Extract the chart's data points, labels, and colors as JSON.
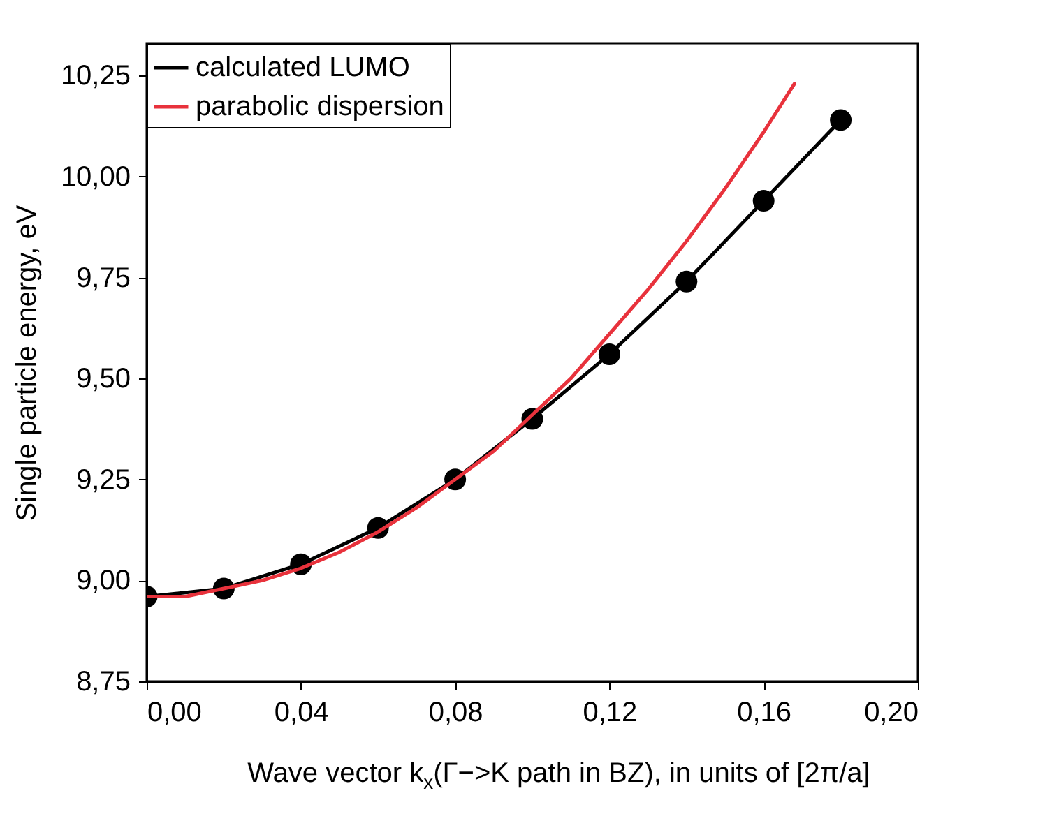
{
  "chart_data": {
    "type": "line",
    "xlabel": "Wave vector k$_{x}$(Γ−>K path in BZ), in units of [2π/a]",
    "ylabel": "Single particle energy, eV",
    "series": [
      {
        "name": "calculated LUMO",
        "color": "#000000",
        "marker": "circle",
        "x": [
          0,
          0.02,
          0.04,
          0.06,
          0.08,
          0.1,
          0.12,
          0.14,
          0.16,
          0.18
        ],
        "values": [
          8.96,
          8.98,
          9.04,
          9.13,
          9.25,
          9.4,
          9.56,
          9.74,
          9.94,
          10.14
        ]
      },
      {
        "name": "parabolic dispersion",
        "color": "#e8323c",
        "marker": "none",
        "x": [
          0,
          0.01,
          0.02,
          0.03,
          0.04,
          0.05,
          0.06,
          0.07,
          0.08,
          0.09,
          0.1,
          0.11,
          0.12,
          0.13,
          0.14,
          0.15,
          0.16,
          0.168
        ],
        "values": [
          8.96,
          8.96,
          8.98,
          9.0,
          9.03,
          9.07,
          9.12,
          9.18,
          9.25,
          9.32,
          9.41,
          9.5,
          9.61,
          9.72,
          9.84,
          9.97,
          10.11,
          10.23
        ]
      }
    ],
    "xlim": [
      0,
      0.2
    ],
    "xticks": [
      {
        "value": 0,
        "label": "0,00"
      },
      {
        "value": 0.04,
        "label": "0,04"
      },
      {
        "value": 0.08,
        "label": "0,08"
      },
      {
        "value": 0.12,
        "label": "0,12"
      },
      {
        "value": 0.16,
        "label": "0,16"
      },
      {
        "value": 0.2,
        "label": "0,20"
      }
    ],
    "ylim": [
      8.75,
      10.33
    ],
    "yticks": [
      {
        "value": 8.75,
        "label": "8,75"
      },
      {
        "value": 9,
        "label": "9,00"
      },
      {
        "value": 9.25,
        "label": "9,25"
      },
      {
        "value": 9.5,
        "label": "9,50"
      },
      {
        "value": 9.75,
        "label": "9,75"
      },
      {
        "value": 10,
        "label": "10,00"
      },
      {
        "value": 10.25,
        "label": "10,25"
      }
    ],
    "grid": false,
    "legend": "top left",
    "line_style": "solid"
  }
}
